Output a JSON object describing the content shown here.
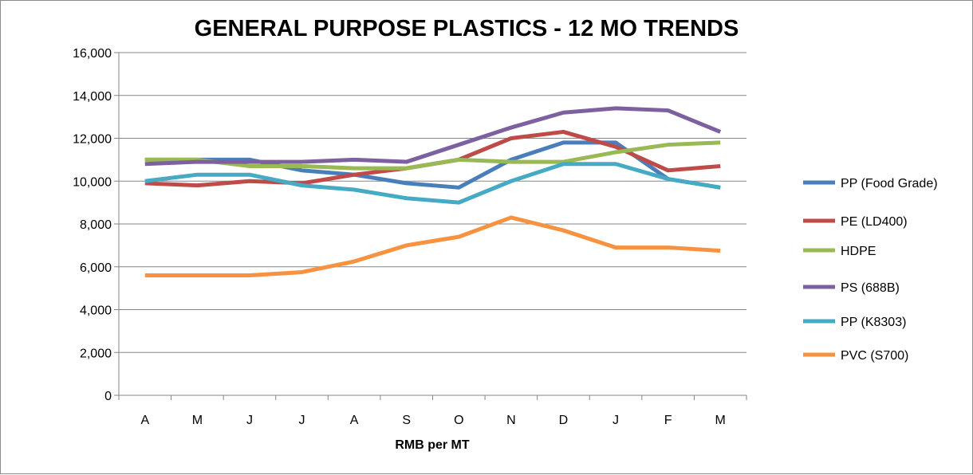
{
  "chart_data": {
    "type": "line",
    "title": "GENERAL PURPOSE PLASTICS - 12 MO TRENDS",
    "xlabel": "RMB per MT",
    "ylabel": "",
    "categories": [
      "A",
      "M",
      "J",
      "J",
      "A",
      "S",
      "O",
      "N",
      "D",
      "J",
      "F",
      "M"
    ],
    "ylim": [
      0,
      16000
    ],
    "yticks": [
      0,
      2000,
      4000,
      6000,
      8000,
      10000,
      12000,
      14000,
      16000
    ],
    "ytick_labels": [
      "0",
      "2,000",
      "4,000",
      "6,000",
      "8,000",
      "10,000",
      "12,000",
      "14,000",
      "16,000"
    ],
    "grid": true,
    "legend_position": "right",
    "series": [
      {
        "name": "PP (Food Grade)",
        "color": "#4a7ebb",
        "values": [
          11000,
          11000,
          11000,
          10500,
          10300,
          9900,
          9700,
          11000,
          11800,
          11800,
          10100,
          9700
        ]
      },
      {
        "name": "PE (LD400)",
        "color": "#be4b48",
        "values": [
          9900,
          9800,
          10000,
          9900,
          10300,
          10600,
          11000,
          12000,
          12300,
          11600,
          10500,
          10700
        ]
      },
      {
        "name": "HDPE",
        "color": "#98b954",
        "values": [
          11000,
          11000,
          10700,
          10700,
          10600,
          10600,
          11000,
          10900,
          10900,
          11350,
          11700,
          11800
        ]
      },
      {
        "name": "PS (688B)",
        "color": "#7d60a0",
        "values": [
          10800,
          10900,
          10900,
          10900,
          11000,
          10900,
          11700,
          12500,
          13200,
          13400,
          13300,
          12300
        ]
      },
      {
        "name": "PP (K8303)",
        "color": "#46aac5",
        "values": [
          10000,
          10300,
          10300,
          9800,
          9600,
          9200,
          9000,
          10000,
          10800,
          10800,
          10100,
          9700
        ]
      },
      {
        "name": "PVC (S700)",
        "color": "#f69240",
        "values": [
          5600,
          5600,
          5600,
          5750,
          6250,
          7000,
          7400,
          8300,
          7700,
          6900,
          6900,
          6750
        ]
      }
    ]
  }
}
